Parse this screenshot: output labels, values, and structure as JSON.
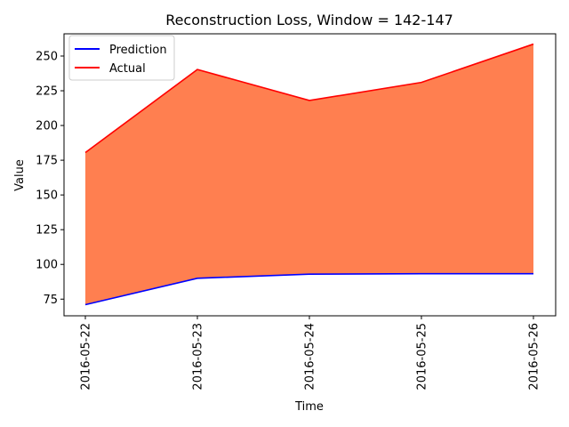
{
  "chart_data": {
    "type": "area",
    "title": "Reconstruction Loss, Window = 142-147",
    "xlabel": "Time",
    "ylabel": "Value",
    "x": [
      "2016-05-22",
      "2016-05-23",
      "2016-05-24",
      "2016-05-25",
      "2016-05-26"
    ],
    "ylim": [
      63,
      266
    ],
    "yticks": [
      75,
      100,
      125,
      150,
      175,
      200,
      225,
      250
    ],
    "grid": false,
    "legend_position": "top-left",
    "series": [
      {
        "name": "Prediction",
        "color": "#0000ff",
        "values": [
          71,
          90,
          93,
          93.3,
          93.3
        ]
      },
      {
        "name": "Actual",
        "color": "#ff0000",
        "values": [
          180.5,
          240.3,
          218,
          231,
          258.6
        ]
      }
    ],
    "fill_color": "#ff7f50"
  }
}
